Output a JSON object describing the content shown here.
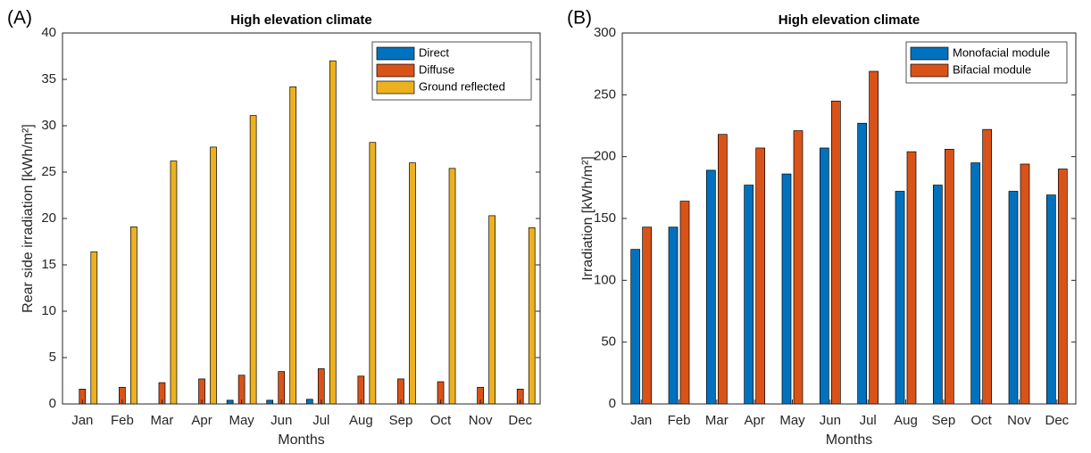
{
  "chart_data": [
    {
      "type": "bar",
      "panel_label": "(A)",
      "title": "High elevation climate",
      "x_label": "Months",
      "y_label": "Rear side irradiation [kWh/m²]",
      "categories": [
        "Jan",
        "Feb",
        "Mar",
        "Apr",
        "May",
        "Jun",
        "Jul",
        "Aug",
        "Sep",
        "Oct",
        "Nov",
        "Dec"
      ],
      "series": [
        {
          "name": "Direct",
          "color": "#0072bd",
          "values": [
            0,
            0,
            0,
            0,
            0.4,
            0.4,
            0.5,
            0,
            0,
            0,
            0,
            0
          ]
        },
        {
          "name": "Diffuse",
          "color": "#d95319",
          "values": [
            1.6,
            1.8,
            2.3,
            2.7,
            3.1,
            3.5,
            3.8,
            3.0,
            2.7,
            2.4,
            1.8,
            1.6
          ]
        },
        {
          "name": "Ground reflected",
          "color": "#edb120",
          "values": [
            16.4,
            19.1,
            26.2,
            27.7,
            31.1,
            34.2,
            37.0,
            28.2,
            26.0,
            25.4,
            20.3,
            19.0
          ]
        }
      ],
      "ylim": [
        0,
        40
      ],
      "yticks": [
        0,
        5,
        10,
        15,
        20,
        25,
        30,
        35,
        40
      ],
      "legend": "upper-right"
    },
    {
      "type": "bar",
      "panel_label": "(B)",
      "title": "High elevation climate",
      "x_label": "Months",
      "y_label": "Irradiation [kWh/m²]",
      "categories": [
        "Jan",
        "Feb",
        "Mar",
        "Apr",
        "May",
        "Jun",
        "Jul",
        "Aug",
        "Sep",
        "Oct",
        "Nov",
        "Dec"
      ],
      "series": [
        {
          "name": "Monofacial module",
          "color": "#0072bd",
          "values": [
            125,
            143,
            189,
            177,
            186,
            207,
            227,
            172,
            177,
            195,
            172,
            169
          ]
        },
        {
          "name": "Bifacial module",
          "color": "#d95319",
          "values": [
            143,
            164,
            218,
            207,
            221,
            245,
            269,
            204,
            206,
            222,
            194,
            190
          ]
        }
      ],
      "ylim": [
        0,
        300
      ],
      "yticks": [
        0,
        50,
        100,
        150,
        200,
        250,
        300
      ],
      "legend": "upper-right"
    }
  ]
}
